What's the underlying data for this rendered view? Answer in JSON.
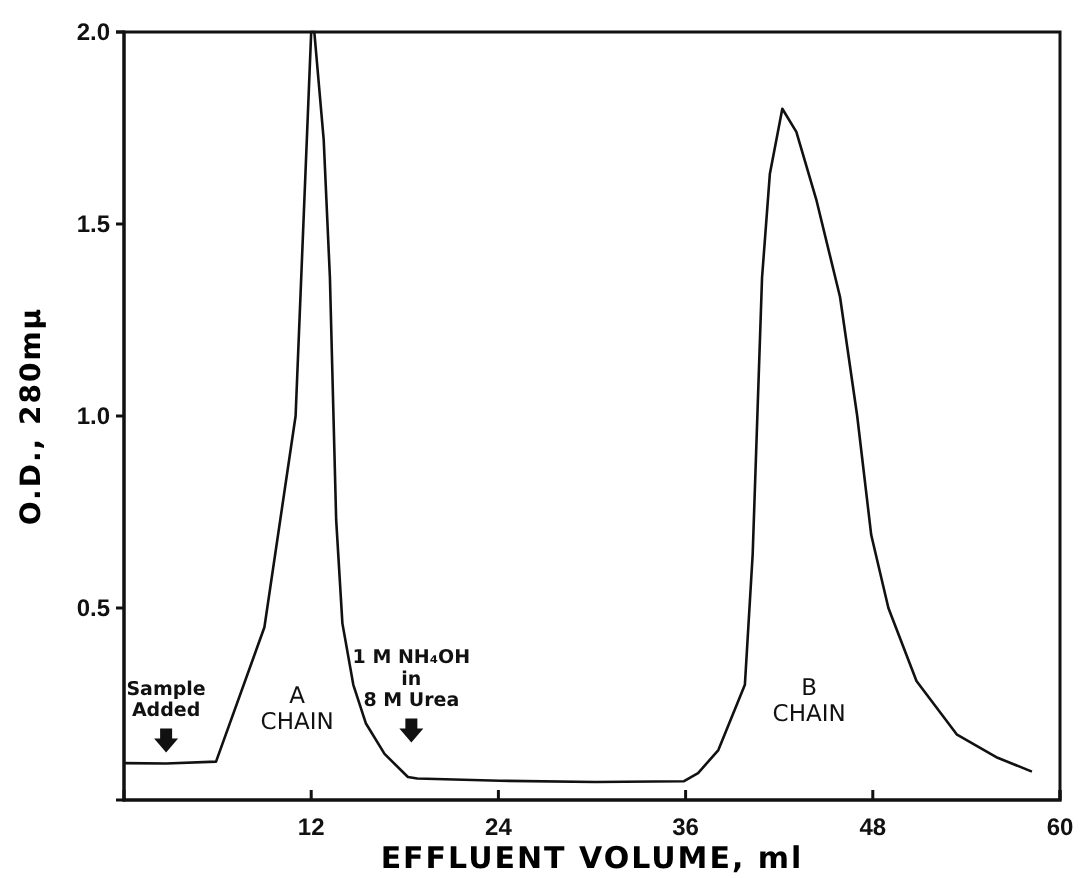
{
  "chart_data": {
    "type": "line",
    "xlabel": "EFFLUENT VOLUME, ml",
    "ylabel": "O.D., 280mμ",
    "xlim": [
      0,
      60
    ],
    "xticks": [
      12,
      24,
      36,
      48,
      60
    ],
    "ylim": [
      0,
      2
    ],
    "yticks": [
      0.5,
      {
        "value": 1,
        "label": "1.0"
      },
      1.5,
      {
        "value": 2,
        "label": "2.0"
      }
    ],
    "grid": false,
    "marker": "none",
    "line_style": "solid",
    "series": [
      {
        "color": "#111111",
        "x": [
          0,
          2.7,
          5.9,
          9.0,
          11.0,
          11.5,
          12.0,
          12.2,
          12.8,
          13.2,
          13.6,
          14.0,
          14.7,
          15.5,
          16.7,
          18.2,
          18.8,
          24.1,
          30.2,
          35.9,
          36.8,
          38.1,
          39.8,
          40.3,
          40.6,
          40.9,
          41.4,
          42.2,
          43.1,
          44.4,
          45.9,
          47.0,
          47.9,
          49.0,
          50.8,
          53.4,
          56.0,
          58.2
        ],
        "values": [
          0.096,
          0.095,
          0.1,
          0.45,
          1.0,
          1.5,
          2.0,
          2.0,
          1.72,
          1.36,
          0.73,
          0.46,
          0.3,
          0.2,
          0.12,
          0.06,
          0.056,
          0.05,
          0.047,
          0.049,
          0.07,
          0.13,
          0.3,
          0.64,
          1.0,
          1.36,
          1.63,
          1.8,
          1.74,
          1.56,
          1.31,
          1.0,
          0.69,
          0.5,
          0.31,
          0.17,
          0.11,
          0.074
        ]
      }
    ],
    "annotations": [
      "Sample\nAdded",
      "A\nCHAIN",
      "1 M NH₄OH\nin\n8 M Urea",
      "B\nCHAIN"
    ]
  }
}
